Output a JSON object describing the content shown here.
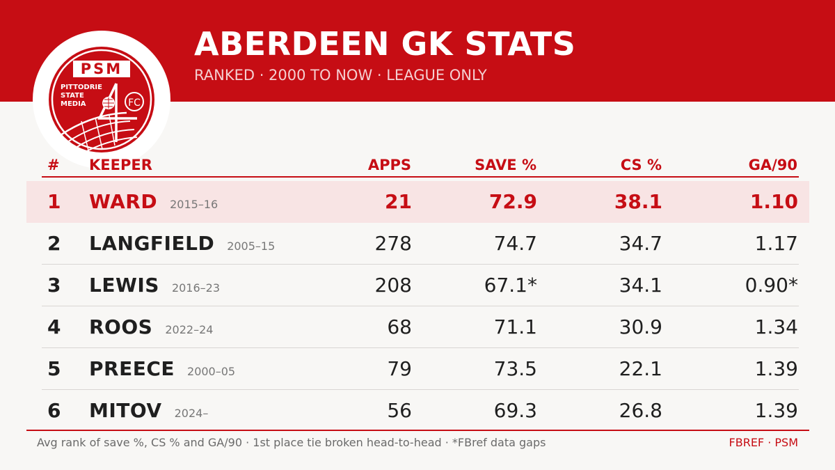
{
  "header": {
    "title": "ABERDEEN GK STATS",
    "subtitle": "RANKED  ·  2000 TO NOW  ·  LEAGUE ONLY"
  },
  "logo": {
    "top_text": "PSM",
    "line1": "PITTODRIE",
    "line2": "STATE",
    "line3": "MEDIA",
    "fc": "FC"
  },
  "table": {
    "headers": {
      "rank": "#",
      "keeper": "KEEPER",
      "apps": "APPS",
      "save": "SAVE %",
      "cs": "CS %",
      "ga": "GA/90"
    },
    "rows": [
      {
        "rank": "1",
        "name": "WARD",
        "years": "2015–16",
        "apps": "21",
        "save": "72.9",
        "cs": "38.1",
        "ga": "1.10"
      },
      {
        "rank": "2",
        "name": "LANGFIELD",
        "years": "2005–15",
        "apps": "278",
        "save": "74.7",
        "cs": "34.7",
        "ga": "1.17"
      },
      {
        "rank": "3",
        "name": "LEWIS",
        "years": "2016–23",
        "apps": "208",
        "save": "67.1*",
        "cs": "34.1",
        "ga": "0.90*"
      },
      {
        "rank": "4",
        "name": "ROOS",
        "years": "2022–24",
        "apps": "68",
        "save": "71.1",
        "cs": "30.9",
        "ga": "1.34"
      },
      {
        "rank": "5",
        "name": "PREECE",
        "years": "2000–05",
        "apps": "79",
        "save": "73.5",
        "cs": "22.1",
        "ga": "1.39"
      },
      {
        "rank": "6",
        "name": "MITOV",
        "years": "2024–",
        "apps": "56",
        "save": "69.3",
        "cs": "26.8",
        "ga": "1.39"
      }
    ]
  },
  "footer": {
    "note": "Avg rank of save %, CS % and GA/90  ·  1st place tie broken head-to-head  ·  *FBref data gaps",
    "credit": "FBREF  ·  PSM"
  },
  "colors": {
    "brand_red": "#c60d14",
    "highlight_row": "#f8e4e4",
    "background": "#f8f7f5"
  }
}
